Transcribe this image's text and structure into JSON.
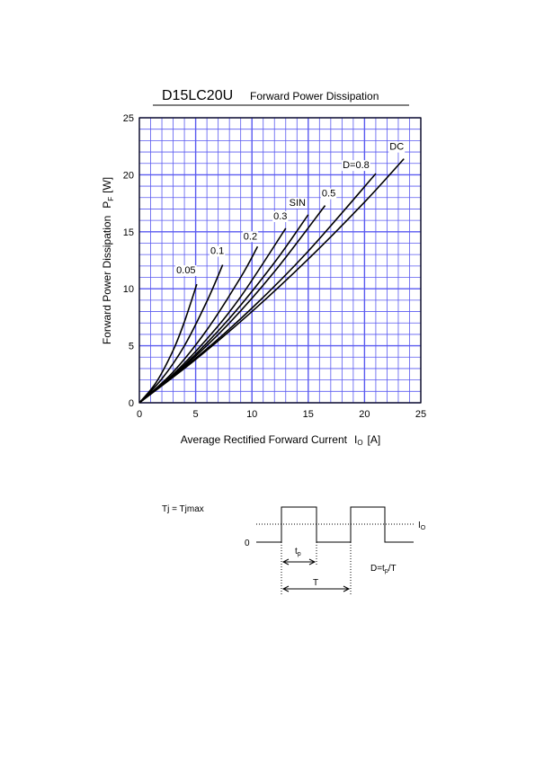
{
  "chart_data": {
    "type": "line",
    "title": "D15LC20U",
    "subtitle": "Forward Power Dissipation",
    "ylabel": {
      "text": "Forward Power Dissipation",
      "symbol": "P",
      "sub": "F",
      "unit": "[W]"
    },
    "xlabel": {
      "text": "Average Rectified Forward Current",
      "symbol": "I",
      "sub": "O",
      "unit": "[A]"
    },
    "xlim": [
      0,
      25
    ],
    "ylim": [
      0,
      25
    ],
    "xticks": [
      0,
      5,
      10,
      15,
      20,
      25
    ],
    "yticks": [
      0,
      5,
      10,
      15,
      20,
      25
    ],
    "xminorticks": [
      1,
      2,
      3,
      4,
      6,
      7,
      8,
      9,
      11,
      12,
      13,
      14,
      16,
      17,
      18,
      19,
      21,
      22,
      23,
      24
    ],
    "yminorticks": [
      1,
      2,
      3,
      4,
      6,
      7,
      8,
      9,
      11,
      12,
      13,
      14,
      16,
      17,
      18,
      19,
      21,
      22,
      23,
      24
    ],
    "grid": true,
    "grid_color": "#5a5af0",
    "series": [
      {
        "name": "0.05",
        "color": "#000000",
        "x": [
          0,
          1.5,
          3,
          4,
          5.1
        ],
        "values": [
          0,
          1.8,
          4.6,
          7.1,
          10.4
        ]
      },
      {
        "name": "0.1",
        "color": "#000000",
        "x": [
          0,
          2,
          4,
          6,
          7.4
        ],
        "values": [
          0,
          2.1,
          5.0,
          8.9,
          12.1
        ]
      },
      {
        "name": "0.2",
        "color": "#000000",
        "x": [
          0,
          3,
          6,
          9,
          10.5
        ],
        "values": [
          0,
          2.7,
          6.4,
          11.0,
          13.7
        ]
      },
      {
        "name": "0.3",
        "color": "#000000",
        "x": [
          0,
          3,
          6,
          9,
          13
        ],
        "values": [
          0,
          2.5,
          5.6,
          9.3,
          15.3
        ]
      },
      {
        "name": "SIN",
        "color": "#000000",
        "x": [
          0,
          4,
          8,
          12,
          15
        ],
        "values": [
          0,
          3.3,
          7.4,
          12.3,
          16.5
        ]
      },
      {
        "name": "0.5",
        "color": "#000000",
        "x": [
          0,
          4,
          8,
          12,
          16.5
        ],
        "values": [
          0,
          3.2,
          7.0,
          11.5,
          17.3
        ]
      },
      {
        "name": "D=0.8",
        "color": "#000000",
        "x": [
          0,
          5,
          10,
          15,
          21
        ],
        "values": [
          0,
          3.9,
          8.3,
          13.3,
          20.1
        ]
      },
      {
        "name": "DC",
        "color": "#000000",
        "x": [
          0,
          5,
          10,
          15,
          20,
          23.5
        ],
        "values": [
          0,
          3.8,
          8.0,
          12.6,
          17.6,
          21.4
        ]
      }
    ]
  },
  "waveform_diagram": {
    "condition": "Tj = Tjmax",
    "zero": "0",
    "current": {
      "symbol": "I",
      "sub": "O"
    },
    "pulse_width": {
      "symbol": "t",
      "sub": "p"
    },
    "period": "T",
    "duty": {
      "prefix": "D=t",
      "sub": "p",
      "suffix": "/T"
    }
  }
}
